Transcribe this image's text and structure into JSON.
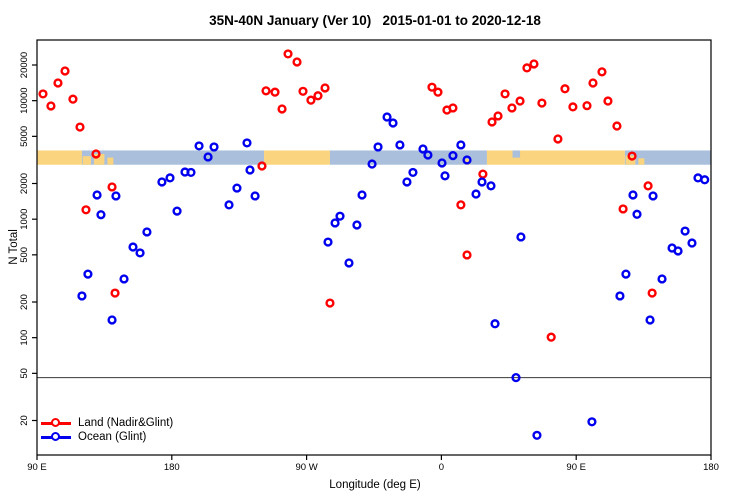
{
  "title": "35N-40N January (Ver 10)   2015-01-01 to 2020-12-18",
  "colors": {
    "land_series": "#ff0000",
    "ocean_series": "#0000ee",
    "band_land": "#fad47e",
    "band_ocean": "#a9bfdc",
    "axis": "#000000",
    "threshold_line": "#3a3a3a",
    "background": "#ffffff"
  },
  "chart_data": {
    "type": "scatter",
    "title": "35N-40N January (Ver 10)   2015-01-01 to 2020-12-18",
    "xlabel": "Longitude (deg E)",
    "ylabel": "N Total",
    "x_axis": {
      "min": 90,
      "max": 540,
      "ticks": [
        {
          "v": 90,
          "label": "90 E"
        },
        {
          "v": 180,
          "label": "180"
        },
        {
          "v": 270,
          "label": "90 W"
        },
        {
          "v": 360,
          "label": "0"
        },
        {
          "v": 450,
          "label": "90 E"
        },
        {
          "v": 540,
          "label": "180"
        }
      ]
    },
    "y_axis": {
      "scale": "log",
      "min": 13,
      "max": 27000,
      "ticks": [
        20000,
        10000,
        5000,
        2000,
        1000,
        500,
        200,
        100,
        50,
        20
      ]
    },
    "threshold_n": 46,
    "surface_band": {
      "n_high": 3800,
      "n_low": 2880,
      "segments": [
        {
          "from": 90,
          "to": 120,
          "type": "land"
        },
        {
          "from": 120,
          "to": 241.6,
          "type": "ocean"
        },
        {
          "from": 241.6,
          "to": 285.6,
          "type": "land"
        },
        {
          "from": 285.6,
          "to": 390.4,
          "type": "ocean"
        },
        {
          "from": 390.4,
          "to": 482.5,
          "type": "land"
        },
        {
          "from": 482.5,
          "to": 540,
          "type": "ocean"
        }
      ],
      "patches": [
        {
          "from": 120.5,
          "to": 126,
          "type": "land",
          "anchor": "bottom",
          "frac": 0.6
        },
        {
          "from": 128,
          "to": 135,
          "type": "land",
          "anchor": "bottom",
          "frac": 0.75
        },
        {
          "from": 137,
          "to": 141,
          "type": "land",
          "anchor": "bottom",
          "frac": 0.5
        },
        {
          "from": 376,
          "to": 379,
          "type": "land",
          "anchor": "bottom",
          "frac": 0.4
        },
        {
          "from": 407.5,
          "to": 412.5,
          "type": "ocean",
          "anchor": "top",
          "frac": 0.5
        },
        {
          "from": 483,
          "to": 489.5,
          "type": "land",
          "anchor": "bottom",
          "frac": 0.65
        },
        {
          "from": 491.5,
          "to": 495.5,
          "type": "land",
          "anchor": "bottom",
          "frac": 0.45
        }
      ]
    },
    "legend": {
      "position": "bottom-left",
      "items": [
        "Land (Nadir&Glint)",
        "Ocean (Glint)"
      ]
    },
    "series": [
      {
        "name": "Land (Nadir&Glint)",
        "color_key": "land_series",
        "points": [
          [
            108.7,
            17800
          ],
          [
            104.0,
            14100
          ],
          [
            94.0,
            11400
          ],
          [
            99.3,
            9020
          ],
          [
            114.0,
            10300
          ],
          [
            118.7,
            5990
          ],
          [
            129.4,
            3550
          ],
          [
            122.7,
            1200
          ],
          [
            140.1,
            1870
          ],
          [
            142.1,
            238
          ],
          [
            240.2,
            2810
          ],
          [
            242.9,
            12100
          ],
          [
            248.9,
            11800
          ],
          [
            257.6,
            24800
          ],
          [
            263.6,
            21200
          ],
          [
            253.6,
            8510
          ],
          [
            267.6,
            12000
          ],
          [
            272.9,
            10100
          ],
          [
            277.6,
            11000
          ],
          [
            282.3,
            12800
          ],
          [
            285.6,
            196
          ],
          [
            353.7,
            13000
          ],
          [
            357.7,
            11800
          ],
          [
            363.7,
            8340
          ],
          [
            367.7,
            8680
          ],
          [
            373.0,
            1320
          ],
          [
            377.1,
            499
          ],
          [
            387.7,
            2400
          ],
          [
            393.8,
            6610
          ],
          [
            397.8,
            7430
          ],
          [
            402.5,
            11400
          ],
          [
            407.1,
            8680
          ],
          [
            412.5,
            9930
          ],
          [
            417.1,
            18900
          ],
          [
            421.8,
            20400
          ],
          [
            427.1,
            9550
          ],
          [
            433.3,
            101
          ],
          [
            437.8,
            4750
          ],
          [
            442.5,
            12600
          ],
          [
            447.8,
            8860
          ],
          [
            457.2,
            9070
          ],
          [
            461.2,
            14100
          ],
          [
            467.2,
            17500
          ],
          [
            471.2,
            9930
          ],
          [
            477.2,
            6110
          ],
          [
            481.3,
            1220
          ],
          [
            487.3,
            3410
          ],
          [
            498.0,
            1910
          ],
          [
            500.7,
            238
          ]
        ]
      },
      {
        "name": "Ocean (Glint)",
        "color_key": "ocean_series",
        "points": [
          [
            120.0,
            225
          ],
          [
            124.0,
            344
          ],
          [
            130.1,
            1600
          ],
          [
            132.7,
            1090
          ],
          [
            140.1,
            141
          ],
          [
            142.7,
            1570
          ],
          [
            148.1,
            313
          ],
          [
            154.1,
            582
          ],
          [
            158.8,
            519
          ],
          [
            163.4,
            780
          ],
          [
            173.4,
            2060
          ],
          [
            178.8,
            2230
          ],
          [
            183.5,
            1170
          ],
          [
            188.8,
            2500
          ],
          [
            192.8,
            2480
          ],
          [
            198.2,
            4150
          ],
          [
            204.2,
            3350
          ],
          [
            208.2,
            4070
          ],
          [
            218.2,
            1320
          ],
          [
            223.5,
            1830
          ],
          [
            230.2,
            4400
          ],
          [
            232.2,
            2600
          ],
          [
            235.6,
            1570
          ],
          [
            284.3,
            641
          ],
          [
            289.0,
            929
          ],
          [
            292.3,
            1060
          ],
          [
            298.3,
            427
          ],
          [
            303.6,
            893
          ],
          [
            307.0,
            1600
          ],
          [
            313.7,
            2920
          ],
          [
            317.7,
            4070
          ],
          [
            323.7,
            7280
          ],
          [
            327.7,
            6480
          ],
          [
            332.3,
            4230
          ],
          [
            337.0,
            2060
          ],
          [
            341.0,
            2480
          ],
          [
            347.7,
            3910
          ],
          [
            351.0,
            3480
          ],
          [
            360.4,
            2980
          ],
          [
            362.4,
            2320
          ],
          [
            367.7,
            3440
          ],
          [
            373.0,
            4230
          ],
          [
            377.1,
            3160
          ],
          [
            383.1,
            1630
          ],
          [
            387.1,
            2060
          ],
          [
            393.1,
            1910
          ],
          [
            395.8,
            131
          ],
          [
            409.8,
            46
          ],
          [
            413.1,
            708
          ],
          [
            423.8,
            15
          ],
          [
            460.5,
            19.5
          ],
          [
            479.2,
            225
          ],
          [
            483.2,
            344
          ],
          [
            487.9,
            1600
          ],
          [
            490.6,
            1100
          ],
          [
            499.3,
            141
          ],
          [
            501.3,
            1570
          ],
          [
            507.3,
            313
          ],
          [
            514.0,
            571
          ],
          [
            518.0,
            539
          ],
          [
            522.7,
            794
          ],
          [
            527.3,
            629
          ],
          [
            531.3,
            2230
          ],
          [
            535.8,
            2150
          ]
        ]
      }
    ]
  }
}
